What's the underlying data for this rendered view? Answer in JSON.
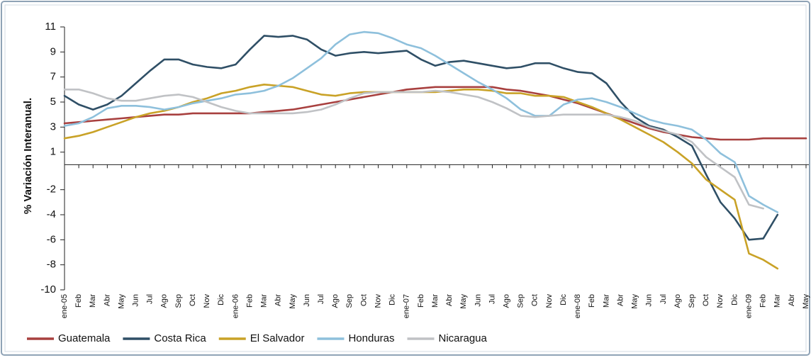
{
  "chart_data": {
    "type": "line",
    "y_label": "% Variación Interanual.",
    "categories": [
      "ene-05",
      "Feb",
      "Mar",
      "Abr",
      "May",
      "Jun",
      "Jul",
      "Ago",
      "Sep",
      "Oct",
      "Nov",
      "Dic",
      "ene-06",
      "Feb",
      "Mar",
      "Abr",
      "May",
      "Jun",
      "Jul",
      "Ago",
      "Sep",
      "Oct",
      "Nov",
      "Dic",
      "ene-07",
      "Feb",
      "Mar",
      "Abr",
      "May",
      "Jun",
      "Jul",
      "Ago",
      "Sep",
      "Oct",
      "Nov",
      "Dic",
      "ene-08",
      "Feb",
      "Mar",
      "Abr",
      "May",
      "Jun",
      "Jul",
      "Ago",
      "Sep",
      "Oct",
      "Nov",
      "Dic",
      "ene-09",
      "Feb",
      "Mar",
      "Abr",
      "May"
    ],
    "ylim": [
      -10,
      11
    ],
    "yticks": [
      11,
      9,
      7,
      5,
      3,
      1,
      -2,
      -4,
      -6,
      -8,
      -10
    ],
    "grid": false,
    "legend": "bottom",
    "series": [
      {
        "name": "Guatemala",
        "color": "#a8403f",
        "values": [
          3.3,
          3.4,
          3.5,
          3.6,
          3.7,
          3.8,
          3.9,
          4.0,
          4.0,
          4.1,
          4.1,
          4.1,
          4.1,
          4.1,
          4.2,
          4.3,
          4.4,
          4.6,
          4.8,
          5.0,
          5.2,
          5.4,
          5.6,
          5.8,
          6.0,
          6.1,
          6.2,
          6.2,
          6.2,
          6.2,
          6.2,
          6.0,
          5.9,
          5.7,
          5.5,
          5.2,
          4.9,
          4.5,
          4.1,
          3.7,
          3.3,
          2.9,
          2.6,
          2.4,
          2.2,
          2.1,
          2.0,
          2.0,
          2.0,
          2.1,
          2.1,
          2.1,
          2.1
        ]
      },
      {
        "name": "Costa Rica",
        "color": "#2f4f66",
        "values": [
          5.5,
          4.8,
          4.4,
          4.8,
          5.5,
          6.5,
          7.5,
          8.4,
          8.4,
          8.0,
          7.8,
          7.7,
          8.0,
          9.2,
          10.3,
          10.2,
          10.3,
          10.0,
          9.2,
          8.7,
          8.9,
          9.0,
          8.9,
          9.0,
          9.1,
          8.4,
          7.9,
          8.2,
          8.3,
          8.1,
          7.9,
          7.7,
          7.8,
          8.1,
          8.1,
          7.7,
          7.4,
          7.3,
          6.5,
          5.0,
          3.8,
          3.1,
          2.8,
          2.2,
          1.5,
          -0.8,
          -3.0,
          -4.3,
          -6.0,
          -5.9,
          -4.0,
          null,
          null
        ]
      },
      {
        "name": "El Salvador",
        "color": "#c9a227",
        "values": [
          2.1,
          2.3,
          2.6,
          3.0,
          3.4,
          3.8,
          4.1,
          4.3,
          4.6,
          5.0,
          5.3,
          5.7,
          5.9,
          6.2,
          6.4,
          6.3,
          6.2,
          5.9,
          5.6,
          5.5,
          5.7,
          5.8,
          5.8,
          5.8,
          5.8,
          5.8,
          5.8,
          5.9,
          6.0,
          6.0,
          5.9,
          5.7,
          5.7,
          5.5,
          5.5,
          5.4,
          5.0,
          4.6,
          4.1,
          3.6,
          3.0,
          2.4,
          1.8,
          1.0,
          0.1,
          -1.2,
          -2.0,
          -2.8,
          -7.1,
          -7.6,
          -8.3,
          null,
          null
        ]
      },
      {
        "name": "Honduras",
        "color": "#8ec0dc",
        "values": [
          3.1,
          3.3,
          3.8,
          4.5,
          4.7,
          4.7,
          4.6,
          4.4,
          4.6,
          4.9,
          5.1,
          5.3,
          5.6,
          5.7,
          5.9,
          6.3,
          6.9,
          7.7,
          8.5,
          9.6,
          10.4,
          10.6,
          10.5,
          10.1,
          9.6,
          9.3,
          8.7,
          8.0,
          7.3,
          6.6,
          6.0,
          5.3,
          4.4,
          3.9,
          3.9,
          4.8,
          5.2,
          5.3,
          5.0,
          4.6,
          4.1,
          3.6,
          3.3,
          3.1,
          2.8,
          2.0,
          0.9,
          0.2,
          -2.5,
          -3.2,
          -3.8,
          null,
          null
        ]
      },
      {
        "name": "Nicaragua",
        "color": "#c0c2c5",
        "values": [
          6.0,
          6.0,
          5.7,
          5.3,
          5.1,
          5.1,
          5.3,
          5.5,
          5.6,
          5.4,
          5.0,
          4.6,
          4.3,
          4.1,
          4.1,
          4.1,
          4.1,
          4.2,
          4.4,
          4.8,
          5.3,
          5.7,
          5.8,
          5.8,
          5.8,
          5.8,
          5.9,
          5.8,
          5.6,
          5.4,
          5.0,
          4.5,
          3.9,
          3.8,
          3.9,
          4.0,
          4.0,
          4.0,
          4.0,
          3.8,
          3.5,
          3.0,
          2.7,
          2.4,
          1.8,
          0.6,
          -0.2,
          -1.0,
          -3.2,
          -3.5,
          null,
          null,
          null
        ]
      }
    ]
  }
}
